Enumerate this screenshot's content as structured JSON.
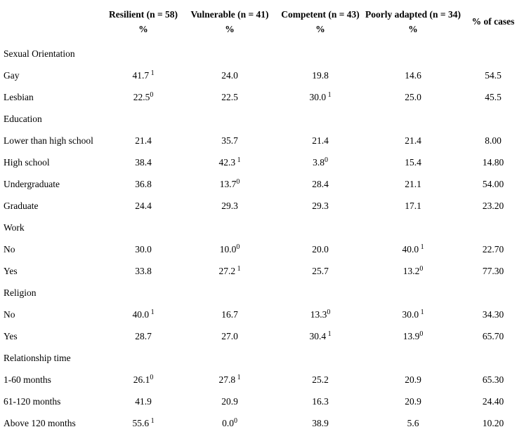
{
  "colors": {
    "background": "#ffffff",
    "text": "#000000"
  },
  "table": {
    "header": {
      "groups": [
        "Resilient (n = 58)",
        "Vulnerable (n = 41)",
        "Competent (n = 43)",
        "Poorly adapted (n = 34)"
      ],
      "unit_label": "%",
      "cases_label": "% of cases"
    },
    "sections": [
      {
        "name": "Sexual Orientation",
        "rows": [
          {
            "label": "Gay",
            "values": [
              {
                "v": "41.7",
                "sup": " 1"
              },
              {
                "v": "24.0"
              },
              {
                "v": "19.8"
              },
              {
                "v": "14.6"
              }
            ],
            "cases": "54.5"
          },
          {
            "label": "Lesbian",
            "values": [
              {
                "v": "22.5",
                "sup": "0"
              },
              {
                "v": "22.5"
              },
              {
                "v": "30.0",
                "sup": " 1"
              },
              {
                "v": "25.0"
              }
            ],
            "cases": "45.5"
          }
        ]
      },
      {
        "name": "Education",
        "rows": [
          {
            "label": "Lower than high school",
            "values": [
              {
                "v": "21.4"
              },
              {
                "v": "35.7"
              },
              {
                "v": "21.4"
              },
              {
                "v": "21.4"
              }
            ],
            "cases": "8.00"
          },
          {
            "label": "High school",
            "values": [
              {
                "v": "38.4"
              },
              {
                "v": "42.3",
                "sup": " 1"
              },
              {
                "v": "3.8",
                "sup": "0"
              },
              {
                "v": "15.4"
              }
            ],
            "cases": "14.80"
          },
          {
            "label": "Undergraduate",
            "values": [
              {
                "v": "36.8"
              },
              {
                "v": "13.7",
                "sup": "0"
              },
              {
                "v": "28.4"
              },
              {
                "v": "21.1"
              }
            ],
            "cases": "54.00"
          },
          {
            "label": "Graduate",
            "values": [
              {
                "v": "24.4"
              },
              {
                "v": "29.3"
              },
              {
                "v": "29.3"
              },
              {
                "v": "17.1"
              }
            ],
            "cases": "23.20"
          }
        ]
      },
      {
        "name": "Work",
        "rows": [
          {
            "label": "No",
            "values": [
              {
                "v": "30.0"
              },
              {
                "v": "10.0",
                "sup": "0"
              },
              {
                "v": "20.0"
              },
              {
                "v": "40.0",
                "sup": " 1"
              }
            ],
            "cases": "22.70"
          },
          {
            "label": "Yes",
            "values": [
              {
                "v": "33.8"
              },
              {
                "v": "27.2",
                "sup": " 1"
              },
              {
                "v": "25.7"
              },
              {
                "v": "13.2",
                "sup": "0"
              }
            ],
            "cases": "77.30"
          }
        ]
      },
      {
        "name": "Religion",
        "rows": [
          {
            "label": "No",
            "values": [
              {
                "v": "40.0",
                "sup": " 1"
              },
              {
                "v": "16.7"
              },
              {
                "v": "13.3",
                "sup": "0"
              },
              {
                "v": "30.0",
                "sup": " 1"
              }
            ],
            "cases": "34.30"
          },
          {
            "label": "Yes",
            "values": [
              {
                "v": "28.7"
              },
              {
                "v": "27.0"
              },
              {
                "v": "30.4",
                "sup": " 1"
              },
              {
                "v": "13.9",
                "sup": "0"
              }
            ],
            "cases": "65.70"
          }
        ]
      },
      {
        "name": "Relationship time",
        "rows": [
          {
            "label": "1-60 months",
            "values": [
              {
                "v": "26.1",
                "sup": "0"
              },
              {
                "v": "27.8",
                "sup": " 1"
              },
              {
                "v": "25.2"
              },
              {
                "v": "20.9"
              }
            ],
            "cases": "65.30"
          },
          {
            "label": "61-120 months",
            "values": [
              {
                "v": "41.9"
              },
              {
                "v": "20.9"
              },
              {
                "v": "16.3"
              },
              {
                "v": "20.9"
              }
            ],
            "cases": "24.40"
          },
          {
            "label": "Above 120 months",
            "values": [
              {
                "v": "55.6",
                "sup": " 1"
              },
              {
                "v": "0.0",
                "sup": "0"
              },
              {
                "v": "38.9"
              },
              {
                "v": "5.6"
              }
            ],
            "cases": "10.20"
          }
        ]
      }
    ]
  }
}
